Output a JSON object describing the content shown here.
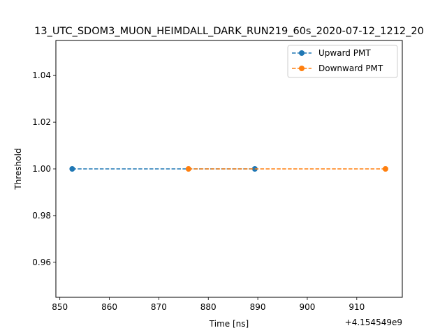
{
  "chart_data": {
    "type": "line",
    "title": "13_UTC_SDOM3_MUON_HEIMDALL_DARK_RUN219_60s_2020-07-12_1212_20",
    "xlabel": "Time [ns]",
    "ylabel": "Threshold",
    "x_offset_label": "+4.154549e9",
    "xlim": [
      849.2,
      919.2
    ],
    "ylim": [
      0.945,
      1.055
    ],
    "x_ticks": [
      850,
      860,
      870,
      880,
      890,
      900,
      910
    ],
    "y_ticks": [
      0.96,
      0.98,
      1.0,
      1.02,
      1.04
    ],
    "y_tick_labels": [
      "0.96",
      "0.98",
      "1.00",
      "1.02",
      "1.04"
    ],
    "grid": false,
    "legend_position": "top-right",
    "series": [
      {
        "name": "Upward PMT",
        "color": "#1f77b4",
        "linestyle": "dashed",
        "marker": "circle",
        "x": [
          852.5,
          889.4
        ],
        "y": [
          1.0,
          1.0
        ]
      },
      {
        "name": "Downward PMT",
        "color": "#ff7f0e",
        "linestyle": "dashed",
        "marker": "circle",
        "x": [
          876.0,
          915.8
        ],
        "y": [
          1.0,
          1.0
        ]
      }
    ]
  }
}
